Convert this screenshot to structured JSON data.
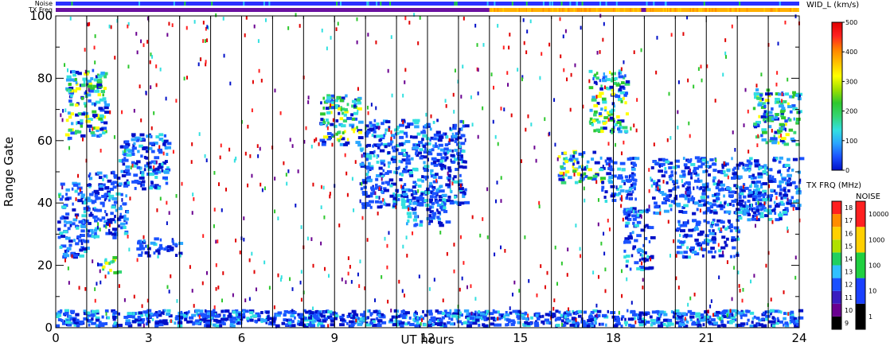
{
  "chart_data": {
    "type": "heatmap",
    "xlabel": "UT hours",
    "ylabel": "Range Gate",
    "xlim": [
      0,
      24
    ],
    "ylim": [
      0,
      100
    ],
    "x_ticks": [
      0,
      3,
      6,
      9,
      12,
      15,
      18,
      21,
      24
    ],
    "y_ticks": [
      0,
      20,
      40,
      60,
      80,
      100
    ],
    "hour_lines": [
      1,
      2,
      3,
      4,
      5,
      6,
      7,
      8,
      9,
      10,
      11,
      12,
      13,
      14,
      15,
      16,
      17,
      18,
      19,
      20,
      21,
      22,
      23
    ],
    "colorbar_width": {
      "title": "WID_L (km/s)",
      "ticks": [
        0,
        100,
        200,
        300,
        400,
        500
      ],
      "range": [
        0,
        500
      ],
      "colors": [
        "#0010c8",
        "#1a52ff",
        "#2aa6ff",
        "#33e0e0",
        "#33d673",
        "#2ec82e",
        "#a0e000",
        "#ffff00",
        "#ffc000",
        "#ff8000",
        "#ff2020",
        "#e00000"
      ]
    },
    "colorbar_freq": {
      "title": "TX FRQ (MHz)",
      "ticks": [
        "9",
        "10",
        "11",
        "12",
        "13",
        "14",
        "15",
        "16",
        "17",
        "18"
      ],
      "colors": [
        "#000000",
        "#6a0090",
        "#3a1cc0",
        "#1a50ff",
        "#30c0ff",
        "#20d060",
        "#b0e000",
        "#ffd000",
        "#ff8c00",
        "#ff2020"
      ]
    },
    "colorbar_noise": {
      "title": "NOISE",
      "ticks": [
        "1",
        "10",
        "100",
        "1000",
        "10000"
      ],
      "colors": [
        "#000000",
        "#1a40ff",
        "#20d040",
        "#ffd000",
        "#ff2020"
      ]
    },
    "status_bars": {
      "noise_label": "Noise",
      "freq_label": "TX Freq",
      "noise_color": "#2a30ff",
      "freq_before_14": "#6a10a0",
      "freq_after_14": "#ffb000"
    },
    "clusters": [
      {
        "x0": 0.05,
        "x1": 1.0,
        "y0": 22,
        "y1": 46,
        "w": "low"
      },
      {
        "x0": 1.0,
        "x1": 2.3,
        "y0": 28,
        "y1": 50,
        "w": "low"
      },
      {
        "x0": 2.0,
        "x1": 3.6,
        "y0": 44,
        "y1": 62,
        "w": "low"
      },
      {
        "x0": 2.5,
        "x1": 4.0,
        "y0": 22,
        "y1": 28,
        "w": "low"
      },
      {
        "x0": 1.3,
        "x1": 2.0,
        "y0": 17,
        "y1": 22,
        "w": "mid"
      },
      {
        "x0": 0.3,
        "x1": 1.6,
        "y0": 60,
        "y1": 82,
        "w": "mid"
      },
      {
        "x0": 8.5,
        "x1": 9.8,
        "y0": 58,
        "y1": 74,
        "w": "mid"
      },
      {
        "x0": 9.8,
        "x1": 13.2,
        "y0": 38,
        "y1": 66,
        "w": "low"
      },
      {
        "x0": 11.3,
        "x1": 12.6,
        "y0": 32,
        "y1": 44,
        "w": "low"
      },
      {
        "x0": 16.2,
        "x1": 17.6,
        "y0": 46,
        "y1": 56,
        "w": "mid"
      },
      {
        "x0": 17.6,
        "x1": 18.7,
        "y0": 40,
        "y1": 54,
        "w": "low"
      },
      {
        "x0": 18.3,
        "x1": 19.2,
        "y0": 18,
        "y1": 38,
        "w": "low"
      },
      {
        "x0": 19.2,
        "x1": 24.0,
        "y0": 36,
        "y1": 54,
        "w": "low"
      },
      {
        "x0": 20.0,
        "x1": 22.0,
        "y0": 22,
        "y1": 34,
        "w": "low"
      },
      {
        "x0": 22.0,
        "x1": 23.5,
        "y0": 34,
        "y1": 44,
        "w": "low"
      },
      {
        "x0": 17.2,
        "x1": 18.4,
        "y0": 62,
        "y1": 82,
        "w": "mid"
      },
      {
        "x0": 22.5,
        "x1": 24.0,
        "y0": 58,
        "y1": 76,
        "w": "mid"
      },
      {
        "x0": 0.0,
        "x1": 24.0,
        "y0": 0,
        "y1": 5,
        "w": "low"
      }
    ]
  }
}
